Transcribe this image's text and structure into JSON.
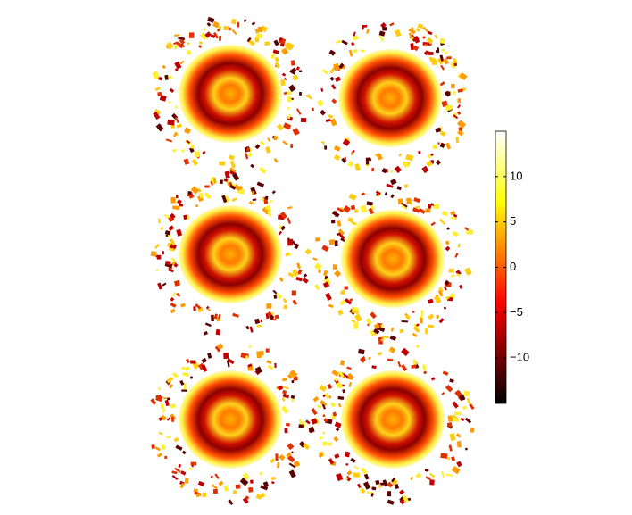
{
  "chart_data": {
    "type": "image",
    "colorbar": {
      "clim": [
        -15,
        15
      ],
      "ticks": [
        {
          "value": 10,
          "label": "10"
        },
        {
          "value": 5,
          "label": "5"
        },
        {
          "value": 0,
          "label": "0"
        },
        {
          "value": -5,
          "label": "−5"
        },
        {
          "value": -10,
          "label": "−10"
        }
      ]
    }
  }
}
